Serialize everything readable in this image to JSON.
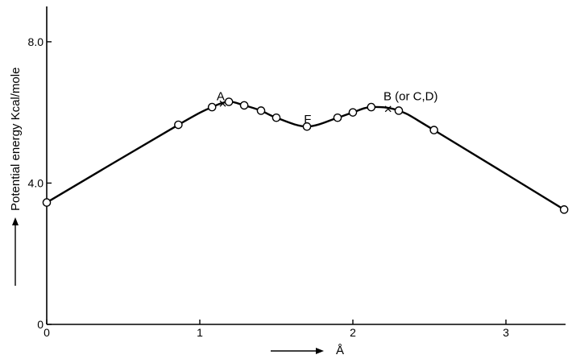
{
  "chart_data": {
    "type": "line",
    "title": "",
    "xlabel": "Å",
    "ylabel": "Potential energy Kcal/mole",
    "xlim": [
      0,
      3.4
    ],
    "ylim": [
      0,
      9
    ],
    "x_ticks": [
      {
        "value": 0,
        "label": "0"
      },
      {
        "value": 1,
        "label": "1"
      },
      {
        "value": 2,
        "label": "2"
      },
      {
        "value": 3,
        "label": "3"
      }
    ],
    "y_ticks": [
      {
        "value": 0,
        "label": "0"
      },
      {
        "value": 4.0,
        "label": "4.0"
      },
      {
        "value": 8.0,
        "label": "8.0"
      }
    ],
    "grid": false,
    "legend": "none",
    "series": [
      {
        "x": [
          0.0,
          0.86,
          1.08,
          1.19,
          1.29,
          1.4,
          1.5,
          1.7,
          1.9,
          2.0,
          2.12,
          2.3,
          2.53,
          3.38
        ],
        "y": [
          3.45,
          5.65,
          6.15,
          6.3,
          6.2,
          6.05,
          5.85,
          5.6,
          5.85,
          6.0,
          6.15,
          6.05,
          5.5,
          3.25
        ]
      }
    ],
    "annotations": [
      {
        "text": "A",
        "x": 1.11,
        "y": 6.35
      },
      {
        "text": "F",
        "x": 1.68,
        "y": 5.7
      },
      {
        "text": "B (or C,D)",
        "x": 2.2,
        "y": 6.35
      }
    ],
    "cross_marks": [
      {
        "x": 1.15,
        "y": 6.25
      },
      {
        "x": 2.23,
        "y": 6.1
      }
    ]
  }
}
